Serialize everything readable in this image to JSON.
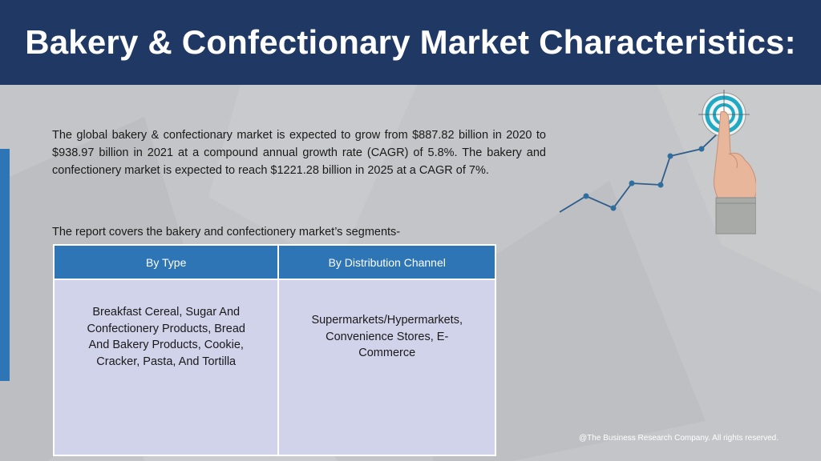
{
  "header": {
    "title": "Bakery & Confectionary Market Characteristics:"
  },
  "intro": {
    "text": "The global bakery & confectionary market is expected to grow from $887.82 billion in 2020 to $938.97 billion in 2021 at a compound annual growth rate (CAGR) of 5.8%. The bakery and confectionery market is expected to reach $1221.28 billion in 2025 at a CAGR of 7%."
  },
  "segments": {
    "label": "The report covers the bakery and confectionery market’s segments-",
    "columns": [
      "By Type",
      "By Distribution Channel"
    ],
    "rows": [
      [
        "Breakfast Cereal, Sugar And Confectionery Products, Bread And Bakery Products, Cookie, Cracker, Pasta, And Tortilla",
        "Supermarkets/Hypermarkets, Convenience Stores, E-Commerce"
      ]
    ]
  },
  "footer": {
    "copyright": "@The Business Research Company. All rights reserved."
  },
  "graphic": {
    "icon": "growth-target-hand-icon",
    "colors": {
      "line": "#2f5c8a",
      "target": "#1ea9c4",
      "sleeve": "#a8aaa8"
    }
  },
  "colors": {
    "header_bg": "#1f3864",
    "accent": "#2e75b6",
    "table_cell": "#d0d3ea",
    "background": "#c3c5c8"
  }
}
